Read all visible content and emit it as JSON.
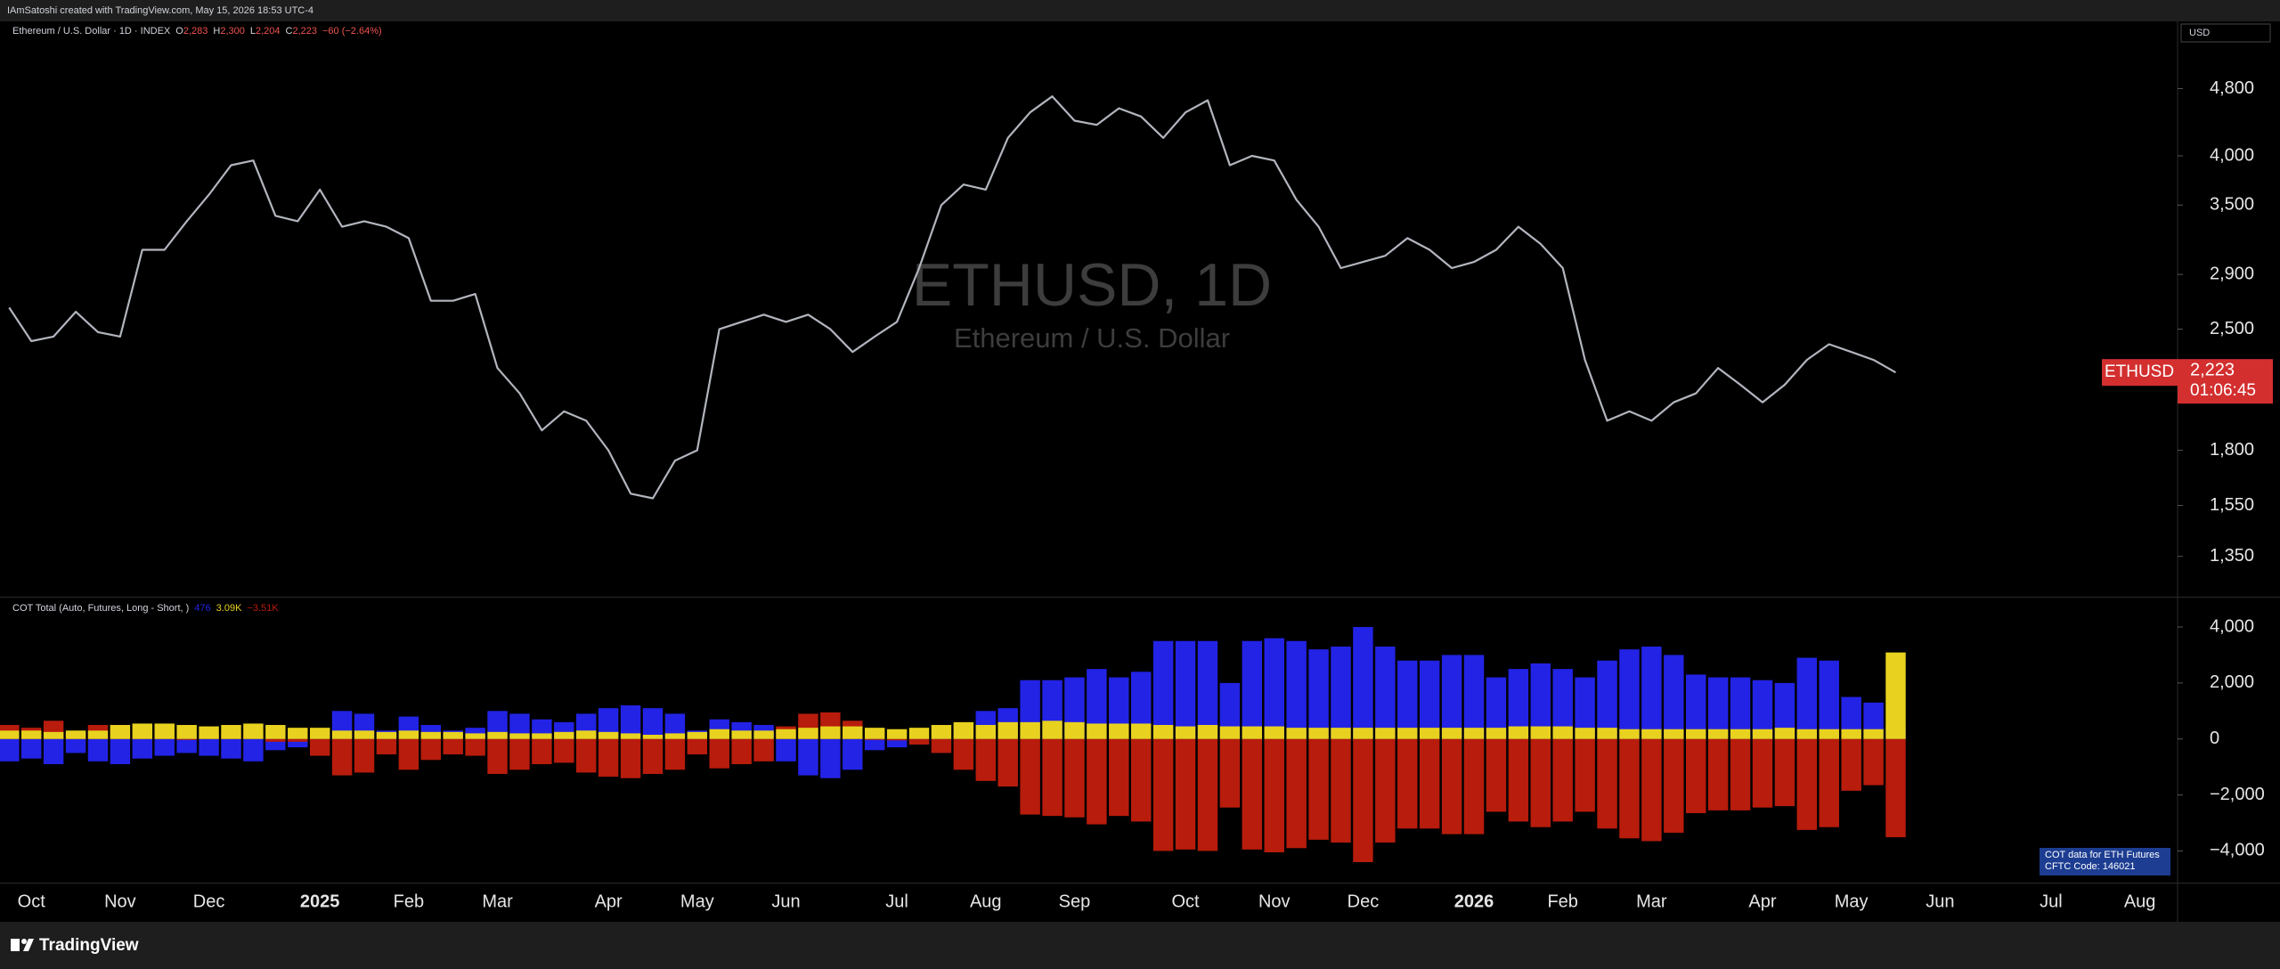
{
  "header": {
    "credit": "IAmSatoshi created with TradingView.com, May 15, 2026 18:53 UTC-4",
    "currency": "USD",
    "brand": "TradingView"
  },
  "chart_data": [
    {
      "type": "line",
      "title": "ETHUSD, 1D",
      "subtitle": "Ethereum / U.S. Dollar",
      "legend": "Ethereum / U.S. Dollar · 1D · INDEX",
      "ohlc_keys": [
        "O",
        "H",
        "L",
        "C"
      ],
      "ohlc_values": [
        "2,283",
        "2,300",
        "2,204",
        "2,223"
      ],
      "change": "−60 (−2.64%)",
      "symbol": "ETHUSD",
      "last_label": "2,223",
      "countdown": "01:06:45",
      "color": "#b2b5be",
      "label_color": "#d32f2f",
      "log": true,
      "grid": false,
      "categories": [
        null,
        "Oct",
        null,
        null,
        null,
        "Nov",
        null,
        null,
        null,
        "Dec",
        null,
        null,
        null,
        null,
        "2025",
        null,
        null,
        null,
        "Feb",
        null,
        null,
        null,
        "Mar",
        null,
        null,
        null,
        null,
        "Apr",
        null,
        null,
        null,
        "May",
        null,
        null,
        null,
        "Jun",
        null,
        null,
        null,
        null,
        "Jul",
        null,
        null,
        null,
        "Aug",
        null,
        null,
        null,
        "Sep",
        null,
        null,
        null,
        null,
        "Oct",
        null,
        null,
        null,
        "Nov",
        null,
        null,
        null,
        "Dec",
        null,
        null,
        null,
        null,
        "2026",
        null,
        null,
        null,
        "Feb",
        null,
        null,
        null,
        "Mar",
        null,
        null,
        null,
        null,
        "Apr",
        null,
        null,
        null,
        "May",
        null,
        null,
        null,
        "Jun",
        null,
        null,
        null,
        null,
        "Jul",
        null,
        null,
        null,
        "Aug",
        null
      ],
      "values": [
        2650,
        2420,
        2450,
        2620,
        2480,
        2450,
        3100,
        3100,
        3350,
        3600,
        3900,
        3950,
        3400,
        3350,
        3650,
        3300,
        3350,
        3300,
        3200,
        2700,
        2700,
        2750,
        2250,
        2100,
        1900,
        2000,
        1950,
        1800,
        1600,
        1580,
        1750,
        1800,
        2500,
        2550,
        2600,
        2550,
        2600,
        2500,
        2350,
        2450,
        2550,
        2950,
        3500,
        3700,
        3650,
        4200,
        4500,
        4700,
        4400,
        4350,
        4550,
        4450,
        4200,
        4500,
        4650,
        3900,
        4000,
        3950,
        3550,
        3300,
        2950,
        3000,
        3050,
        3200,
        3100,
        2950,
        3000,
        3100,
        3300,
        3150,
        2950,
        2300,
        1950,
        2000,
        1950,
        2050,
        2100,
        2250,
        2150,
        2050,
        2150,
        2300,
        2400,
        2350,
        2300,
        2223,
        null,
        null,
        null,
        null,
        null,
        null,
        null,
        null,
        null,
        null,
        null,
        null
      ],
      "ylim": [
        1210,
        5760
      ],
      "yticks": [
        {
          "value": 1350,
          "label": "1,350"
        },
        {
          "value": 1550,
          "label": "1,550"
        },
        {
          "value": 1800,
          "label": "1,800"
        },
        {
          "value": 2500,
          "label": "2,500"
        },
        {
          "value": 2900,
          "label": "2,900"
        },
        {
          "value": 3500,
          "label": "3,500"
        },
        {
          "value": 4000,
          "label": "4,000"
        },
        {
          "value": 4800,
          "label": "4,800"
        }
      ]
    },
    {
      "type": "bar",
      "title": "COT Total (Auto, Futures, Long - Short, )",
      "legend_values": [
        "476",
        "3.09K",
        "−3.51K"
      ],
      "note": [
        "COT data for ETH Futures",
        "CFTC Code: 146021"
      ],
      "note_color": "#1c3d91",
      "grid": false,
      "series": [
        {
          "color": "#2323e6",
          "values": [
            -800,
            -700,
            -900,
            -500,
            -800,
            -900,
            -700,
            -600,
            -500,
            -600,
            -700,
            -800,
            -400,
            -300,
            200,
            1000,
            900,
            300,
            800,
            500,
            300,
            400,
            1000,
            900,
            700,
            600,
            900,
            1100,
            1200,
            1100,
            900,
            300,
            700,
            600,
            500,
            -800,
            -1300,
            -1400,
            -1100,
            -400,
            -300,
            -200,
            0,
            500,
            1000,
            1100,
            2100,
            2100,
            2200,
            2500,
            2200,
            2400,
            3500,
            3500,
            3500,
            2000,
            3500,
            3600,
            3500,
            3200,
            3300,
            4000,
            3300,
            2800,
            2800,
            3000,
            3000,
            2200,
            2500,
            2700,
            2500,
            2200,
            2800,
            3200,
            3300,
            3000,
            2300,
            2200,
            2200,
            2100,
            2000,
            2900,
            2800,
            1500,
            1300,
            476,
            null,
            null,
            null,
            null,
            null,
            null,
            null,
            null,
            null,
            null,
            null,
            null
          ]
        },
        {
          "color": "#e8d21f",
          "values": [
            300,
            300,
            250,
            300,
            300,
            500,
            550,
            550,
            500,
            450,
            500,
            550,
            500,
            400,
            400,
            300,
            300,
            250,
            300,
            250,
            250,
            200,
            250,
            200,
            200,
            250,
            300,
            250,
            200,
            150,
            200,
            250,
            350,
            300,
            300,
            350,
            400,
            450,
            450,
            400,
            350,
            400,
            500,
            600,
            500,
            600,
            600,
            650,
            600,
            550,
            550,
            550,
            500,
            450,
            500,
            450,
            450,
            450,
            400,
            400,
            400,
            400,
            400,
            400,
            400,
            400,
            400,
            400,
            450,
            450,
            450,
            400,
            400,
            350,
            350,
            350,
            350,
            350,
            350,
            350,
            400,
            350,
            350,
            350,
            350,
            3090,
            null,
            null,
            null,
            null,
            null,
            null,
            null,
            null,
            null,
            null,
            null,
            null
          ]
        },
        {
          "color": "#b81c0c",
          "values": [
            500,
            400,
            650,
            200,
            500,
            400,
            150,
            50,
            0,
            150,
            200,
            250,
            -100,
            -100,
            -600,
            -1300,
            -1200,
            -550,
            -1100,
            -750,
            -550,
            -600,
            -1250,
            -1100,
            -900,
            -850,
            -1200,
            -1350,
            -1400,
            -1250,
            -1100,
            -550,
            -1050,
            -900,
            -800,
            450,
            900,
            950,
            650,
            0,
            -50,
            -200,
            -500,
            -1100,
            -1500,
            -1700,
            -2700,
            -2750,
            -2800,
            -3050,
            -2750,
            -2950,
            -4000,
            -3950,
            -4000,
            -2450,
            -3950,
            -4050,
            -3900,
            -3600,
            -3700,
            -4400,
            -3700,
            -3200,
            -3200,
            -3400,
            -3400,
            -2600,
            -2950,
            -3150,
            -2950,
            -2600,
            -3200,
            -3550,
            -3650,
            -3350,
            -2650,
            -2550,
            -2550,
            -2450,
            -2400,
            -3250,
            -3150,
            -1850,
            -1650,
            -3510,
            null,
            null,
            null,
            null,
            null,
            null,
            null,
            null,
            null,
            null,
            null,
            null
          ]
        }
      ],
      "ylim": [
        -5100,
        5050
      ],
      "yticks": [
        {
          "value": -4000,
          "label": "−4,000"
        },
        {
          "value": -2000,
          "label": "−2,000"
        },
        0,
        {
          "value": 2000,
          "label": "2,000"
        },
        {
          "value": 4000,
          "label": "4,000"
        }
      ]
    }
  ]
}
